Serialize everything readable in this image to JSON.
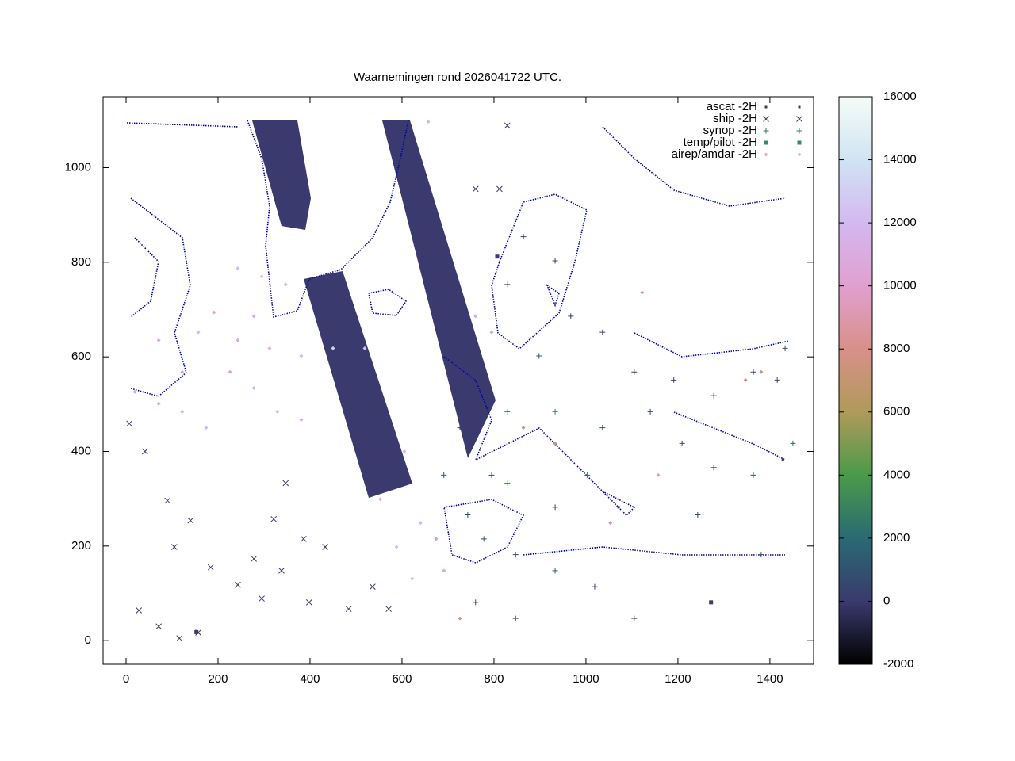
{
  "chart_data": {
    "type": "scatter",
    "title": "Waarnemingen rond 2026041722 UTC.",
    "xlim": [
      -50,
      1495
    ],
    "ylim": [
      -50,
      1150
    ],
    "xticks": [
      0,
      200,
      400,
      600,
      800,
      1000,
      1200,
      1400
    ],
    "yticks": [
      0,
      200,
      400,
      600,
      800,
      1000
    ],
    "cblim": [
      -2000,
      16000
    ],
    "cbticks": [
      -2000,
      0,
      2000,
      4000,
      6000,
      8000,
      10000,
      12000,
      14000,
      16000
    ],
    "cbcolors": [
      "#000000",
      "#3a3a6e",
      "#2a6a72",
      "#4a9a4a",
      "#b09a5a",
      "#d8908a",
      "#e0a0d0",
      "#d4b8f0",
      "#d0e4f4",
      "#f6fcf6"
    ],
    "legend": "top-right",
    "series": [
      {
        "name": "ascat -2H",
        "marker": "dot",
        "color": "#3a3a70",
        "x": [
          312,
          329,
          347,
          416,
          450,
          484,
          536,
          579,
          588,
          622,
          657,
          691,
          743,
          769,
          433,
          510,
          1071,
          1428
        ],
        "values": [
          1055,
          971,
          904,
          719,
          602,
          484,
          366,
          333,
          1055,
          921,
          803,
          686,
          551,
          450,
          753,
          518,
          282,
          383
        ],
        "z": [
          0,
          0,
          0,
          0,
          0,
          0,
          0,
          0,
          0,
          0,
          0,
          0,
          0,
          0,
          0,
          0,
          0,
          0
        ]
      },
      {
        "name": "ship -2H",
        "marker": "x",
        "color": "#3a3a70",
        "x": [
          7,
          41,
          90,
          140,
          105,
          184,
          243,
          295,
          338,
          386,
          433,
          484,
          536,
          347,
          398,
          28,
          71,
          116,
          157,
          321,
          278,
          571,
          829,
          760,
          812
        ],
        "values": [
          459,
          400,
          296,
          254,
          198,
          155,
          118,
          89,
          148,
          215,
          198,
          67,
          114,
          333,
          81,
          64,
          30,
          5,
          17,
          257,
          173,
          67,
          1089,
          955,
          955
        ],
        "z": [
          0,
          0,
          0,
          0,
          0,
          0,
          0,
          0,
          0,
          0,
          0,
          0,
          0,
          0,
          0,
          0,
          0,
          0,
          0,
          0,
          0,
          0,
          0,
          0,
          0
        ]
      },
      {
        "name": "synop -2H",
        "marker": "plus",
        "color": "#3a7a5a",
        "x": [
          864,
          933,
          829,
          967,
          898,
          1036,
          1105,
          1191,
          1278,
          1364,
          829,
          933,
          1036,
          1140,
          743,
          778,
          847,
          933,
          1019,
          760,
          847,
          1105,
          726,
          691,
          795,
          1209,
          1278,
          1364,
          1416,
          1433,
          1381,
          1243,
          1450,
          829,
          933,
          1003
        ],
        "values": [
          854,
          803,
          753,
          686,
          602,
          652,
          568,
          551,
          518,
          568,
          484,
          484,
          450,
          484,
          266,
          215,
          182,
          148,
          114,
          81,
          47,
          47,
          450,
          350,
          350,
          417,
          366,
          350,
          551,
          618,
          182,
          266,
          417,
          333,
          282,
          350
        ],
        "z": [
          300,
          200,
          100,
          200,
          1200,
          300,
          200,
          400,
          300,
          200,
          2500,
          3000,
          800,
          600,
          700,
          900,
          400,
          1500,
          300,
          200,
          600,
          400,
          100,
          1100,
          800,
          300,
          500,
          1400,
          200,
          800,
          900,
          600,
          1600,
          3500,
          700,
          1800
        ]
      },
      {
        "name": "temp/pilot -2H",
        "marker": "square",
        "color": "#3a8a6a",
        "x": [
          153,
          807,
          1272
        ],
        "values": [
          18,
          812,
          81
        ],
        "z": [
          0,
          100,
          0
        ]
      },
      {
        "name": "airep/amdar -2H",
        "marker": "diamond",
        "color": "#e0b0d8",
        "x": [
          19,
          71,
          122,
          174,
          226,
          278,
          329,
          381,
          157,
          243,
          312,
          381,
          450,
          519,
          71,
          122,
          243,
          295,
          347,
          191,
          278,
          588,
          640,
          674,
          622,
          553,
          691,
          726,
          760,
          795,
          864,
          933,
          1122,
          1347,
          1381,
          1157,
          1053,
          657,
          605
        ],
        "values": [
          526,
          501,
          484,
          450,
          568,
          534,
          484,
          467,
          652,
          635,
          618,
          602,
          618,
          618,
          635,
          568,
          787,
          770,
          753,
          694,
          686,
          198,
          249,
          215,
          131,
          299,
          148,
          47,
          686,
          652,
          450,
          417,
          736,
          551,
          568,
          350,
          249,
          1097,
          400
        ],
        "z": [
          11000,
          10500,
          11500,
          12000,
          10000,
          11000,
          12500,
          11000,
          12000,
          10500,
          11500,
          12000,
          13000,
          12000,
          11000,
          10000,
          12000,
          12500,
          11500,
          10500,
          11000,
          12000,
          11500,
          9000,
          12000,
          11000,
          10500,
          8000,
          11000,
          10000,
          8000,
          7000,
          8500,
          8000,
          7500,
          9500,
          9000,
          12000,
          11500
        ]
      }
    ]
  }
}
